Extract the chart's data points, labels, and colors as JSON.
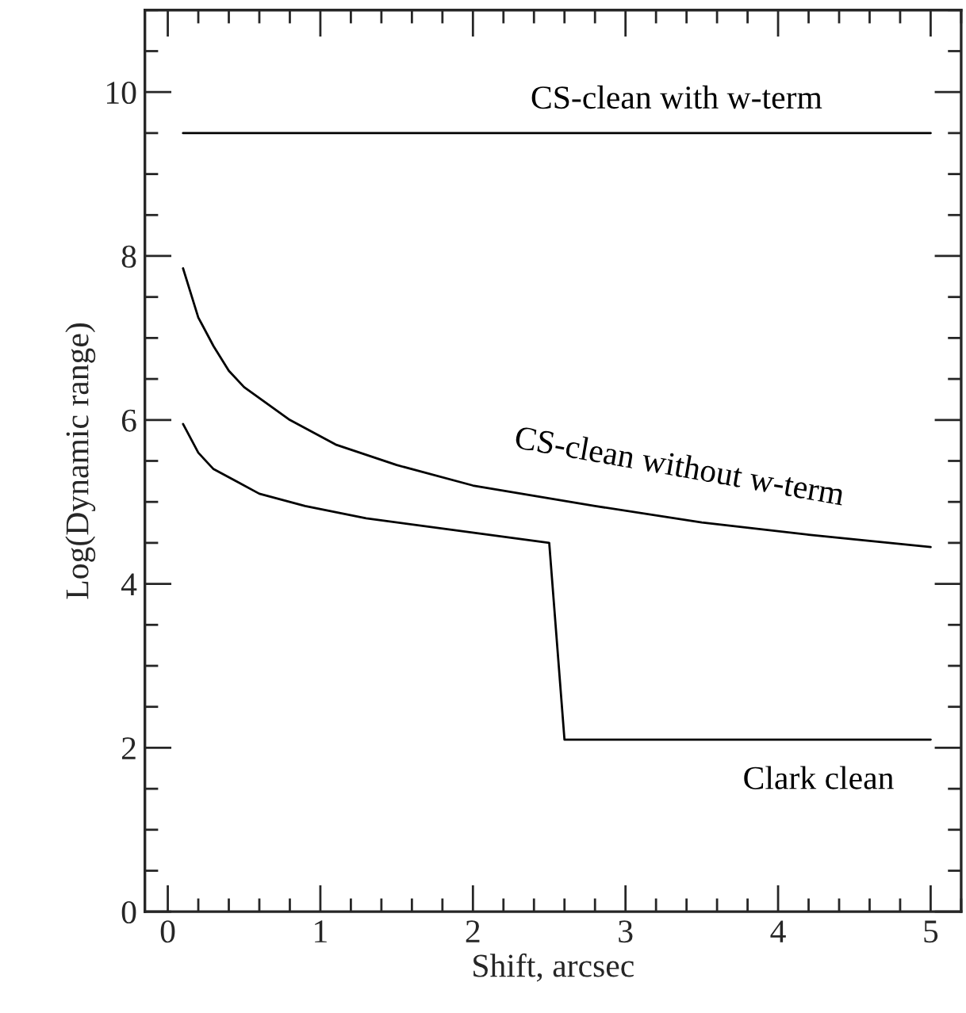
{
  "chart_data": {
    "type": "line",
    "xlabel": "Shift, arcsec",
    "ylabel": "Log(Dynamic range)",
    "xlim": [
      -0.15,
      5.2
    ],
    "ylim": [
      0,
      11
    ],
    "xticks": [
      0,
      1,
      2,
      3,
      4,
      5
    ],
    "yticks": [
      0,
      2,
      4,
      6,
      8,
      10
    ],
    "grid": false,
    "legend": false,
    "marker": "none",
    "line_style": "solid",
    "series": [
      {
        "name": "CS-clean with w-term",
        "color": "#000000",
        "x": [
          0.1,
          5
        ],
        "values": [
          9.5,
          9.5
        ]
      },
      {
        "name": "CS-clean without w-term",
        "color": "#000000",
        "x": [
          0.1,
          0.2,
          0.3,
          0.4,
          0.5,
          0.8,
          1.1,
          1.5,
          2.0,
          2.8,
          3.5,
          4.2,
          5.0
        ],
        "values": [
          7.85,
          7.25,
          6.9,
          6.6,
          6.4,
          6.0,
          5.7,
          5.45,
          5.2,
          4.95,
          4.75,
          4.6,
          4.45
        ]
      },
      {
        "name": "Clark clean",
        "color": "#000000",
        "x": [
          0.1,
          0.2,
          0.3,
          0.45,
          0.6,
          0.9,
          1.3,
          1.9,
          2.5,
          2.6,
          5.0
        ],
        "values": [
          5.95,
          5.6,
          5.4,
          5.25,
          5.1,
          4.95,
          4.8,
          4.65,
          4.5,
          2.1,
          2.1
        ]
      }
    ]
  }
}
